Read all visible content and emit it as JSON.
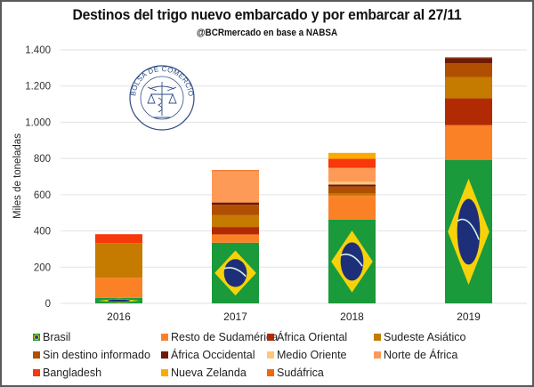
{
  "chart_data": {
    "type": "bar",
    "stacked": true,
    "title": "Destinos del trigo nuevo embarcado y por embarcar al  27/11",
    "subtitle": "@BCRmercado en base a NABSA",
    "xlabel": "",
    "ylabel": "Miles de toneladas",
    "ylim": [
      0,
      1400
    ],
    "yticks": [
      0,
      200,
      400,
      600,
      800,
      1000,
      1200,
      1400
    ],
    "ytick_labels": [
      "0",
      "200",
      "400",
      "600",
      "800",
      "1.000",
      "1.200",
      "1.400"
    ],
    "grid": true,
    "legend_position": "bottom",
    "categories": [
      "2016",
      "2017",
      "2018",
      "2019"
    ],
    "series": [
      {
        "name": "Brasil",
        "color": "#1a9a3b",
        "pattern": "brazil-flag",
        "values": [
          30,
          335,
          462,
          791
        ]
      },
      {
        "name": "Resto de Sudamérica",
        "color": "#fb8127",
        "values": [
          112,
          46,
          132,
          193
        ]
      },
      {
        "name": "África Oriental",
        "color": "#b22a04",
        "values": [
          0,
          41,
          0,
          148
        ]
      },
      {
        "name": "Sudeste Asiático",
        "color": "#c47b00",
        "values": [
          191,
          65,
          12,
          118
        ]
      },
      {
        "name": "Sin destino informado",
        "color": "#b04f02",
        "values": [
          0,
          57,
          39,
          75
        ]
      },
      {
        "name": "África Occidental",
        "color": "#6f1a03",
        "values": [
          0,
          13,
          11,
          30
        ]
      },
      {
        "name": "Medio Oriente",
        "color": "#ffc97a",
        "values": [
          0,
          0,
          15,
          0
        ]
      },
      {
        "name": "Norte de África",
        "color": "#fd9a58",
        "values": [
          0,
          173,
          77,
          0
        ]
      },
      {
        "name": "Bangladesh",
        "color": "#f7380a",
        "values": [
          49,
          0,
          50,
          0
        ]
      },
      {
        "name": "Nueva Zelanda",
        "color": "#fdaa00",
        "values": [
          0,
          0,
          33,
          0
        ]
      },
      {
        "name": "Sudáfrica",
        "color": "#f4650f",
        "values": [
          0,
          6,
          0,
          5
        ]
      }
    ],
    "legend_order": [
      "Brasil",
      "Resto de Sudamérica",
      "África Oriental",
      "Sudeste Asiático",
      "Sin destino informado",
      "África Occidental",
      "Medio Oriente",
      "Norte de África",
      "Bangladesh",
      "Nueva Zelanda",
      "Sudáfrica"
    ]
  },
  "watermark": {
    "text": "BOLSA DE COMERCIO DE ROSARIO",
    "color": "#2f4d87"
  }
}
